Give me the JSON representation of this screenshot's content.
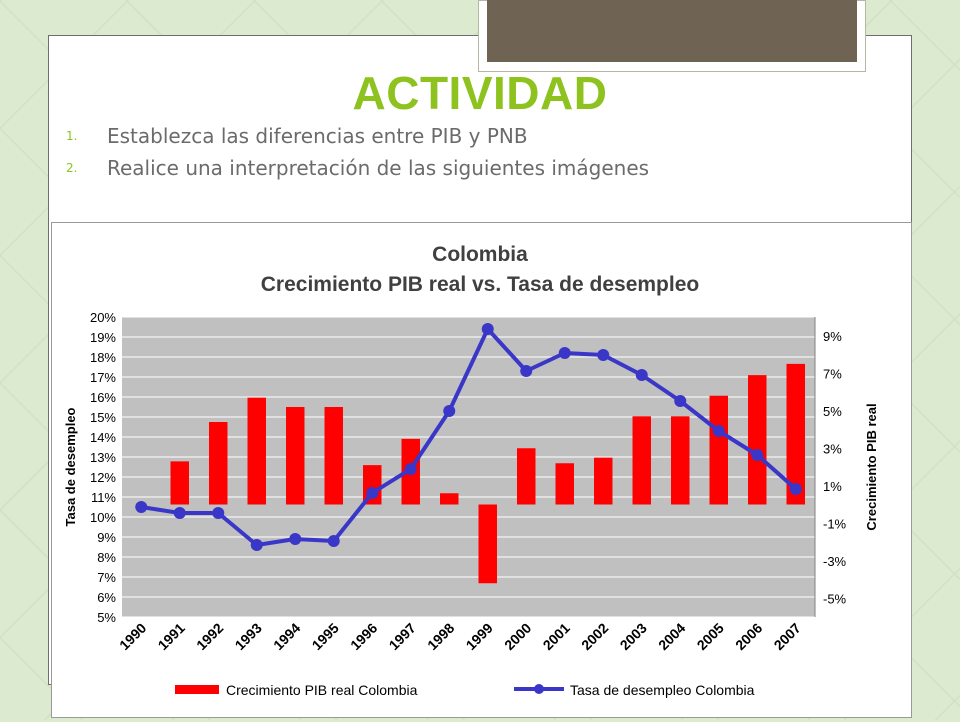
{
  "slide": {
    "title": "ACTIVIDAD",
    "items": [
      {
        "number": "1.",
        "text": "Establezca las diferencias entre PIB y PNB"
      },
      {
        "number": "2.",
        "text": "Realice una interpretación de las siguientes imágenes"
      }
    ]
  },
  "colors": {
    "title": "#8dc21f",
    "bars": "#ff0000",
    "line": "#3a37c8",
    "plot_bg": "#c0c0c0"
  },
  "chart_data": {
    "type": "bar",
    "title": "Colombia",
    "subtitle": "Crecimiento PIB real vs. Tasa de desempleo",
    "ylabel": "Tasa de desempleo",
    "y2label": "Crecimiento PIB real",
    "ylim": [
      5,
      20
    ],
    "y2lim": [
      -6,
      10
    ],
    "yticks": [
      "20%",
      "19%",
      "18%",
      "17%",
      "16%",
      "15%",
      "14%",
      "13%",
      "12%",
      "11%",
      "10%",
      "9%",
      "8%",
      "7%",
      "6%",
      "5%"
    ],
    "y2ticks": [
      "9%",
      "7%",
      "5%",
      "3%",
      "1%",
      "-1%",
      "-3%",
      "-5%"
    ],
    "categories": [
      "1990",
      "1991",
      "1992",
      "1993",
      "1994",
      "1995",
      "1996",
      "1997",
      "1998",
      "1999",
      "2000",
      "2001",
      "2002",
      "2003",
      "2004",
      "2005",
      "2006",
      "2007"
    ],
    "legend_position": "bottom",
    "grid": true,
    "series": [
      {
        "name": "Crecimiento PIB real Colombia",
        "type": "bar",
        "axis": "right",
        "values": [
          null,
          2.3,
          4.4,
          5.7,
          5.2,
          5.2,
          2.1,
          3.5,
          0.6,
          -4.2,
          3.0,
          2.2,
          2.5,
          4.7,
          4.7,
          5.8,
          6.9,
          7.5
        ]
      },
      {
        "name": "Tasa de desempleo Colombia",
        "type": "line",
        "axis": "left",
        "values": [
          10.5,
          10.2,
          10.2,
          8.6,
          8.9,
          8.8,
          11.2,
          12.4,
          15.3,
          19.4,
          17.3,
          18.2,
          18.1,
          17.1,
          15.8,
          14.3,
          13.1,
          11.4
        ]
      }
    ]
  }
}
